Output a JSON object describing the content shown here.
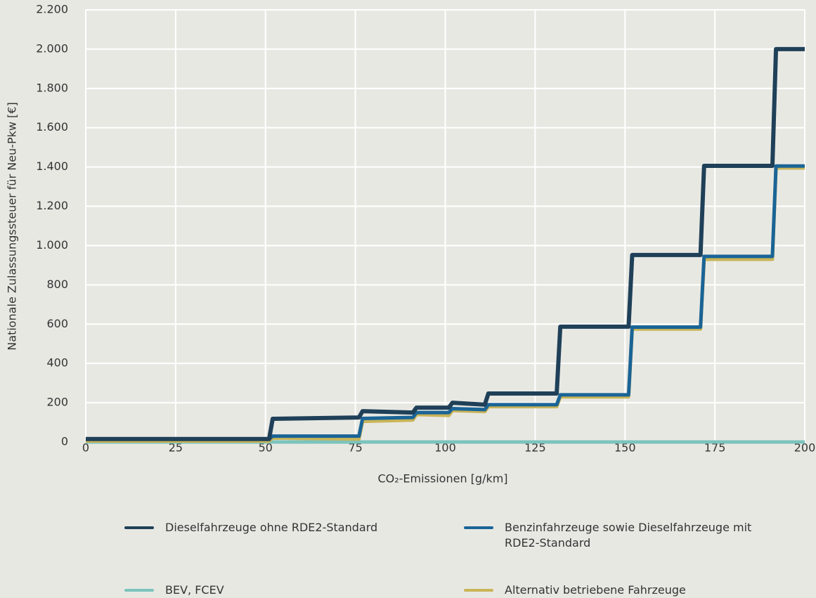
{
  "chart_data": {
    "type": "line",
    "x_label": "CO₂-Emissionen [g/km]",
    "y_label": "Nationale Zulassungssteuer für Neu-Pkw [€]",
    "x": [
      0,
      51,
      52,
      76,
      77,
      91,
      92,
      101,
      102,
      111,
      112,
      131,
      132,
      151,
      152,
      171,
      172,
      191,
      192,
      200
    ],
    "series": [
      {
        "name": "Dieselfahrzeuge ohne RDE2-Standard",
        "color": "#1f4058",
        "values": [
          15,
          15,
          118,
          125,
          157,
          150,
          175,
          175,
          200,
          190,
          247,
          247,
          587,
          587,
          952,
          952,
          1406,
          1406,
          2000,
          2000
        ]
      },
      {
        "name": "Benzinfahrzeuge sowie Dieselfahrzeuge mit RDE2-Standard",
        "color": "#1a6496",
        "values": [
          15,
          15,
          30,
          30,
          120,
          125,
          150,
          150,
          170,
          165,
          190,
          190,
          240,
          240,
          585,
          585,
          945,
          945,
          1405,
          1405
        ]
      },
      {
        "name": "BEV, FCEV",
        "color": "#7cc4bd",
        "values": [
          0,
          0,
          0,
          0,
          0,
          0,
          0,
          0,
          0,
          0,
          0,
          0,
          0,
          0,
          0,
          0,
          0,
          0,
          0,
          0
        ]
      },
      {
        "name": "Alternativ betriebene Fahrzeuge",
        "color": "#c9b458",
        "values": [
          5,
          5,
          20,
          15,
          105,
          112,
          140,
          135,
          160,
          155,
          180,
          180,
          230,
          230,
          575,
          575,
          930,
          930,
          1395,
          1395
        ]
      }
    ],
    "xlim": [
      0,
      200
    ],
    "xticks": [
      0,
      25,
      50,
      75,
      100,
      125,
      150,
      175,
      200
    ],
    "ylim": [
      0,
      2200
    ],
    "yticks": [
      0,
      200,
      400,
      600,
      800,
      {
        "value": 1000,
        "label": "1.000"
      },
      {
        "value": 1200,
        "label": "1.200"
      },
      {
        "value": 1400,
        "label": "1.400"
      },
      {
        "value": 1600,
        "label": "1.600"
      },
      {
        "value": 1800,
        "label": "1.800"
      },
      {
        "value": 2000,
        "label": "2.000"
      },
      {
        "value": 2200,
        "label": "2.200"
      }
    ],
    "grid": true
  }
}
